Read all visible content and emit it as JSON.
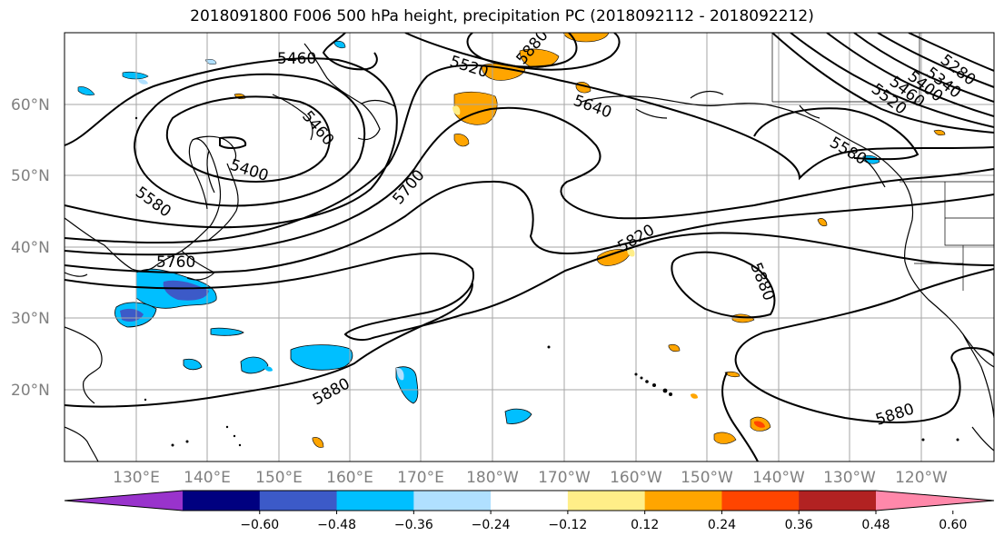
{
  "title": "2018091800 F006 500 hPa height, precipitation PC (2018092112 - 2018092212)",
  "lat_labels": [
    "60°N",
    "50°N",
    "40°N",
    "30°N",
    "20°N"
  ],
  "lon_labels": [
    "130°E",
    "140°E",
    "150°E",
    "160°E",
    "170°E",
    "180°W",
    "170°W",
    "160°W",
    "150°W",
    "140°W",
    "130°W",
    "120°W"
  ],
  "contour_labels": [
    "5460",
    "5520",
    "5460",
    "5400",
    "5580",
    "5640",
    "5700",
    "5760",
    "5820",
    "5880",
    "5880",
    "5880",
    "5880",
    "5280",
    "5340",
    "5400",
    "5460",
    "5520",
    "5580"
  ],
  "colorbar": {
    "ticks": [
      "−0.60",
      "−0.48",
      "−0.36",
      "−0.24",
      "−0.12",
      "0.12",
      "0.24",
      "0.36",
      "0.48",
      "0.60"
    ],
    "colors": [
      "#9933cc",
      "#000080",
      "#3c5ac8",
      "#00bfff",
      "#b0e0ff",
      "#ffffff",
      "#ffee88",
      "#ffa500",
      "#ff4500",
      "#b22222",
      "#ff88aa"
    ]
  },
  "colors": {
    "negative_fill": "#00bfff",
    "negative_light": "#b0e0ff",
    "negative_strong": "#3c5ac8",
    "positive_fill": "#ffa500",
    "positive_light": "#ffee88",
    "positive_strong": "#ff4500"
  }
}
